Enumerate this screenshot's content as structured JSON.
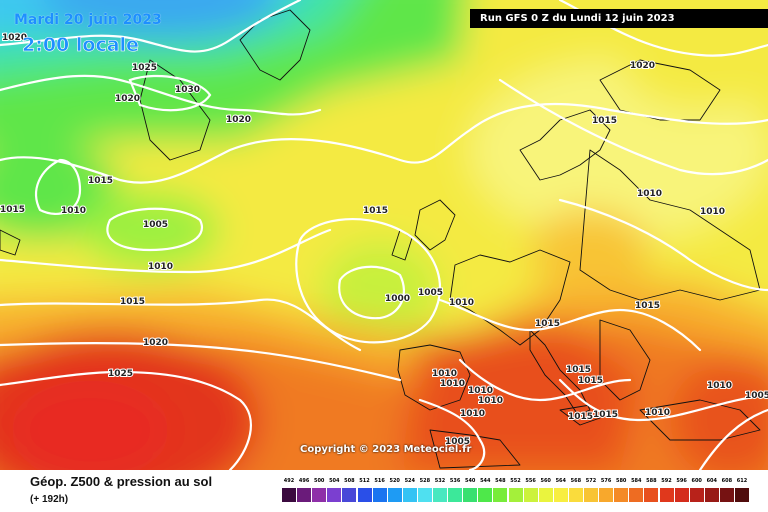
{
  "header": {
    "date": "Mardi 20 juin 2023",
    "time": "2:00 locale",
    "run": "Run GFS 0 Z du Lundi 12 juin 2023"
  },
  "copyright": "Copyright © 2023 Meteociel.fr",
  "footer": {
    "title": "Géop. Z500 & pression au sol",
    "subtitle": "(+ 192h)"
  },
  "isobar_labels": [
    "1020",
    "1025",
    "1030",
    "1020",
    "1020",
    "1015",
    "1010",
    "1015",
    "1005",
    "1010",
    "1015",
    "1020",
    "1025",
    "1015",
    "1000",
    "1005",
    "1010",
    "1020",
    "1015",
    "1010",
    "1010",
    "1015",
    "1015",
    "1010",
    "1005",
    "1015",
    "1010",
    "1010",
    "1010",
    "1010",
    "1010",
    "1015",
    "1015",
    "1015",
    "1005"
  ],
  "legend": {
    "ticks": [
      "492",
      "496",
      "500",
      "504",
      "508",
      "512",
      "516",
      "520",
      "524",
      "528",
      "532",
      "536",
      "540",
      "544",
      "548",
      "552",
      "556",
      "560",
      "564",
      "568",
      "572",
      "576",
      "580",
      "584",
      "588",
      "592",
      "596",
      "600",
      "604",
      "608",
      "612"
    ],
    "colors": [
      "#3b0a3f",
      "#6a1b7a",
      "#8e2fa8",
      "#7b3fd0",
      "#4848d8",
      "#2a4fe8",
      "#1a74f0",
      "#1e9bf4",
      "#34c3f4",
      "#4fe0f0",
      "#48e8c0",
      "#3ce89a",
      "#38e070",
      "#4ee84a",
      "#78ec3a",
      "#a4f03a",
      "#ccf23c",
      "#eaf43e",
      "#f8ee40",
      "#fadc3c",
      "#f8c434",
      "#f8a82c",
      "#f48a26",
      "#ee6c22",
      "#e8501e",
      "#e0381c",
      "#d42c1c",
      "#b8221a",
      "#981a16",
      "#761212",
      "#500c0c"
    ]
  }
}
